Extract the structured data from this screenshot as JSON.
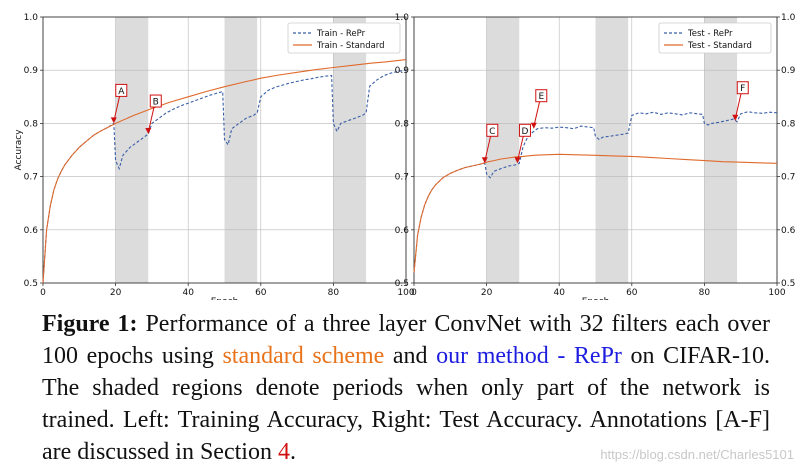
{
  "chart_data": [
    {
      "type": "line",
      "panel": "left",
      "xlabel": "Epoch",
      "ylabel": "Accuracy",
      "xlim": [
        0,
        100
      ],
      "ylim": [
        0.5,
        1.0
      ],
      "xticks": [
        "0",
        "20",
        "40",
        "60",
        "80",
        "100"
      ],
      "yticks": [
        "0.5",
        "0.6",
        "0.7",
        "0.8",
        "0.9",
        "1.0"
      ],
      "grid": true,
      "legend_position": "top-right",
      "shaded_regions": [
        [
          20,
          29
        ],
        [
          50,
          59
        ],
        [
          80,
          89
        ]
      ],
      "series": [
        {
          "name": "Train - RePr",
          "color": "#3a5fa8",
          "style": "dashed",
          "x": [
            0,
            1,
            2,
            3,
            4,
            5,
            6,
            8,
            10,
            12,
            14,
            16,
            18,
            19.5,
            20,
            21,
            22,
            24,
            26,
            28,
            29,
            30,
            32,
            34,
            36,
            38,
            40,
            42,
            44,
            46,
            48,
            49.5,
            50,
            51,
            52,
            54,
            56,
            58,
            59,
            60,
            62,
            64,
            66,
            68,
            70,
            72,
            74,
            76,
            78,
            79.5,
            80,
            81,
            82,
            84,
            86,
            88,
            89,
            90,
            92,
            94,
            96,
            98,
            100
          ],
          "y": [
            0.5,
            0.6,
            0.645,
            0.675,
            0.695,
            0.71,
            0.722,
            0.74,
            0.755,
            0.767,
            0.778,
            0.786,
            0.793,
            0.8,
            0.73,
            0.715,
            0.74,
            0.755,
            0.765,
            0.775,
            0.78,
            0.8,
            0.81,
            0.82,
            0.827,
            0.833,
            0.838,
            0.843,
            0.848,
            0.853,
            0.857,
            0.86,
            0.77,
            0.76,
            0.79,
            0.8,
            0.81,
            0.815,
            0.82,
            0.85,
            0.862,
            0.868,
            0.872,
            0.876,
            0.879,
            0.882,
            0.884,
            0.887,
            0.889,
            0.89,
            0.8,
            0.785,
            0.8,
            0.805,
            0.81,
            0.815,
            0.82,
            0.87,
            0.882,
            0.89,
            0.895,
            0.898,
            0.9
          ]
        },
        {
          "name": "Train - Standard",
          "color": "#e06a2c",
          "style": "solid",
          "x": [
            0,
            1,
            2,
            3,
            4,
            5,
            6,
            8,
            10,
            12,
            14,
            16,
            18,
            20,
            25,
            30,
            35,
            40,
            45,
            50,
            55,
            60,
            65,
            70,
            75,
            80,
            85,
            90,
            95,
            100
          ],
          "y": [
            0.5,
            0.6,
            0.645,
            0.675,
            0.695,
            0.71,
            0.722,
            0.74,
            0.755,
            0.767,
            0.778,
            0.786,
            0.793,
            0.8,
            0.815,
            0.828,
            0.84,
            0.85,
            0.86,
            0.869,
            0.877,
            0.885,
            0.891,
            0.896,
            0.901,
            0.905,
            0.909,
            0.913,
            0.916,
            0.92
          ]
        }
      ],
      "annotations": [
        {
          "label": "A",
          "x": 19.5,
          "y": 0.8
        },
        {
          "label": "B",
          "x": 29,
          "y": 0.78
        }
      ]
    },
    {
      "type": "line",
      "panel": "right",
      "xlabel": "Epoch",
      "xlim": [
        0,
        100
      ],
      "ylim": [
        0.5,
        1.0
      ],
      "xticks": [
        "0",
        "20",
        "40",
        "60",
        "80",
        "100"
      ],
      "yticks": [
        "0.5",
        "0.6",
        "0.7",
        "0.8",
        "0.9",
        "1.0"
      ],
      "grid": true,
      "legend_position": "top-right",
      "shaded_regions": [
        [
          20,
          29
        ],
        [
          50,
          59
        ],
        [
          80,
          89
        ]
      ],
      "series": [
        {
          "name": "Test - RePr",
          "color": "#3a5fa8",
          "style": "dashed",
          "x": [
            0,
            1,
            2,
            3,
            4,
            5,
            6,
            8,
            10,
            12,
            14,
            16,
            18,
            19.5,
            20,
            21,
            22,
            24,
            26,
            28,
            29,
            30,
            31,
            32,
            33,
            34,
            36,
            38,
            40,
            42,
            44,
            46,
            48,
            49.5,
            50,
            51,
            52,
            54,
            56,
            58,
            59,
            60,
            62,
            64,
            66,
            68,
            70,
            72,
            74,
            76,
            78,
            79.5,
            80,
            81,
            82,
            84,
            86,
            88,
            89,
            90,
            92,
            94,
            96,
            98,
            100
          ],
          "y": [
            0.52,
            0.59,
            0.625,
            0.648,
            0.664,
            0.676,
            0.685,
            0.698,
            0.706,
            0.712,
            0.717,
            0.72,
            0.723,
            0.725,
            0.705,
            0.698,
            0.71,
            0.715,
            0.72,
            0.722,
            0.725,
            0.755,
            0.77,
            0.78,
            0.785,
            0.79,
            0.792,
            0.791,
            0.793,
            0.792,
            0.79,
            0.795,
            0.793,
            0.792,
            0.775,
            0.77,
            0.774,
            0.776,
            0.778,
            0.78,
            0.782,
            0.815,
            0.82,
            0.818,
            0.821,
            0.817,
            0.82,
            0.818,
            0.816,
            0.82,
            0.818,
            0.817,
            0.8,
            0.797,
            0.8,
            0.802,
            0.805,
            0.808,
            0.803,
            0.818,
            0.822,
            0.82,
            0.819,
            0.821,
            0.82
          ]
        },
        {
          "name": "Test - Standard",
          "color": "#e06a2c",
          "style": "solid",
          "x": [
            0,
            1,
            2,
            3,
            4,
            5,
            6,
            8,
            10,
            12,
            14,
            16,
            18,
            20,
            22,
            24,
            26,
            28,
            30,
            33,
            36,
            40,
            45,
            50,
            55,
            60,
            65,
            70,
            75,
            80,
            85,
            90,
            95,
            100
          ],
          "y": [
            0.52,
            0.59,
            0.625,
            0.648,
            0.664,
            0.676,
            0.685,
            0.698,
            0.706,
            0.712,
            0.717,
            0.72,
            0.723,
            0.727,
            0.73,
            0.733,
            0.735,
            0.737,
            0.738,
            0.74,
            0.741,
            0.742,
            0.741,
            0.74,
            0.739,
            0.738,
            0.736,
            0.734,
            0.732,
            0.73,
            0.728,
            0.727,
            0.726,
            0.725
          ]
        }
      ],
      "annotations": [
        {
          "label": "C",
          "x": 19.5,
          "y": 0.725
        },
        {
          "label": "D",
          "x": 28.5,
          "y": 0.725
        },
        {
          "label": "E",
          "x": 33,
          "y": 0.79
        },
        {
          "label": "F",
          "x": 88.5,
          "y": 0.805
        }
      ]
    }
  ],
  "caption": {
    "label": "Figure 1:",
    "text1": " Performance of a three layer ConvNet with 32 filters each over 100 epochs using ",
    "standard": "standard scheme",
    "text2": " and ",
    "ours": "our method - RePr",
    "text3": " on CIFAR-10. The shaded regions denote periods when only part of the network is trained. Left: Training Accuracy, Right: Test Accuracy. Annotations [A-F] are discussed in Section ",
    "section": "4",
    "text4": "."
  },
  "watermark": "https://blog.csdn.net/Charles5101"
}
